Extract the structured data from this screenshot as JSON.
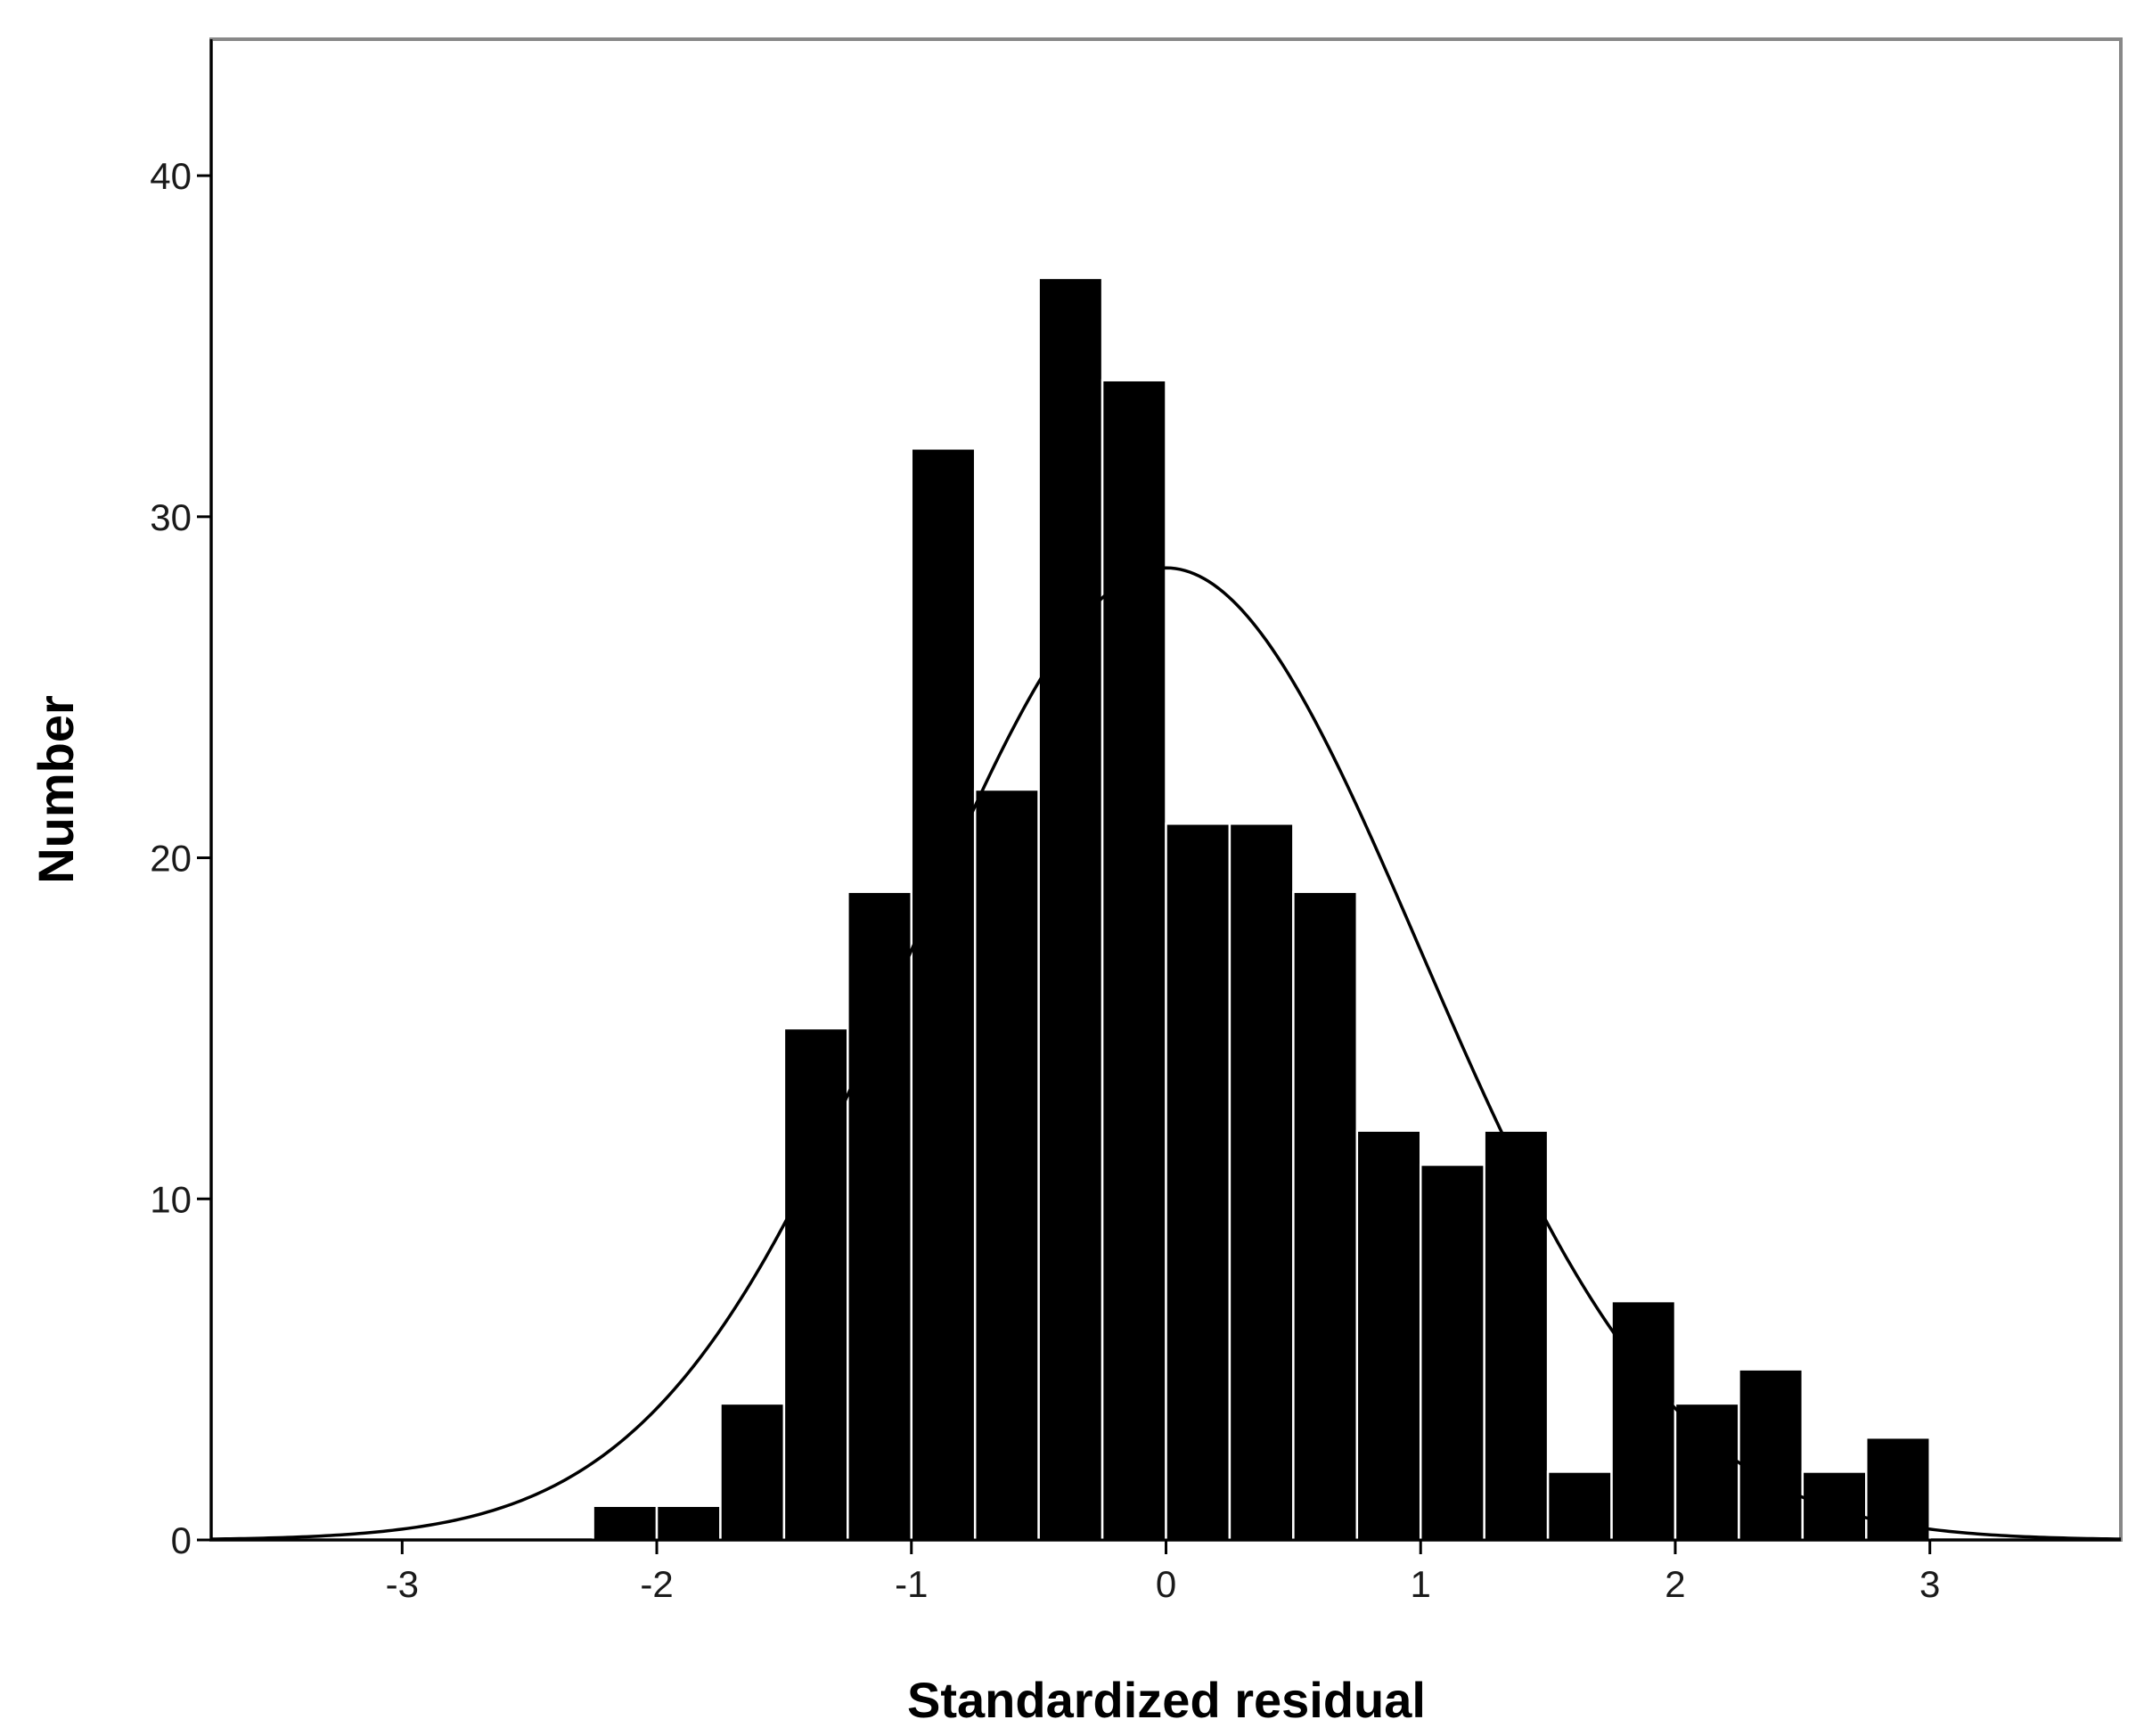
{
  "chart_data": {
    "type": "bar",
    "subtype": "histogram",
    "title": "",
    "xlabel": "Standardized residual",
    "ylabel": "Number",
    "xlim": [
      -3.75,
      3.75
    ],
    "ylim": [
      0,
      44
    ],
    "xticks": [
      -3,
      -2,
      -1,
      0,
      1,
      2,
      3
    ],
    "yticks": [
      0,
      10,
      20,
      30,
      40
    ],
    "bin_width": 0.25,
    "bins": [
      {
        "start": -2.25,
        "end": -2.0,
        "value": 1
      },
      {
        "start": -2.0,
        "end": -1.75,
        "value": 1
      },
      {
        "start": -1.75,
        "end": -1.5,
        "value": 4
      },
      {
        "start": -1.5,
        "end": -1.25,
        "value": 15
      },
      {
        "start": -1.25,
        "end": -1.0,
        "value": 19
      },
      {
        "start": -1.0,
        "end": -0.75,
        "value": 32
      },
      {
        "start": -0.75,
        "end": -0.5,
        "value": 22
      },
      {
        "start": -0.5,
        "end": -0.25,
        "value": 37
      },
      {
        "start": -0.25,
        "end": 0.0,
        "value": 34
      },
      {
        "start": 0.0,
        "end": 0.25,
        "value": 21
      },
      {
        "start": 0.25,
        "end": 0.5,
        "value": 21
      },
      {
        "start": 0.5,
        "end": 0.75,
        "value": 19
      },
      {
        "start": 0.75,
        "end": 1.0,
        "value": 12
      },
      {
        "start": 1.0,
        "end": 1.25,
        "value": 11
      },
      {
        "start": 1.25,
        "end": 1.5,
        "value": 12
      },
      {
        "start": 1.5,
        "end": 1.75,
        "value": 2
      },
      {
        "start": 1.75,
        "end": 2.0,
        "value": 7
      },
      {
        "start": 2.0,
        "end": 2.25,
        "value": 4
      },
      {
        "start": 2.25,
        "end": 2.5,
        "value": 5
      },
      {
        "start": 2.5,
        "end": 2.75,
        "value": 2
      },
      {
        "start": 2.75,
        "end": 3.0,
        "value": 3
      }
    ],
    "normal_curve": {
      "mean": 0.0,
      "sd": 1.0,
      "peak": 28.5
    },
    "grid": false,
    "legend": "none",
    "bar_color": "#000000",
    "bar_edge_color": "#ffffff"
  }
}
